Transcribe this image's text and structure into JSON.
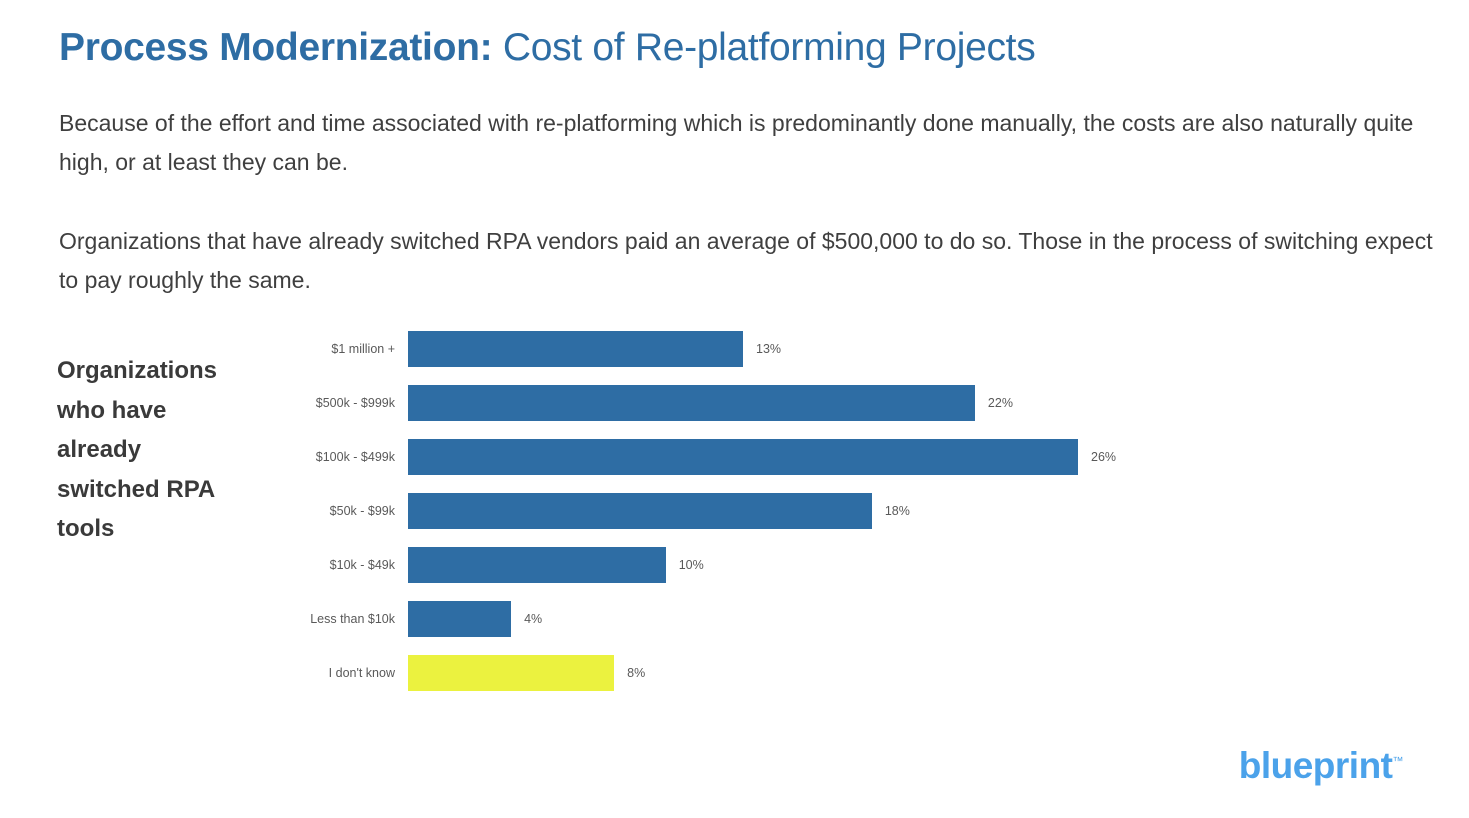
{
  "slide": {
    "title_bold": "Process Modernization:",
    "title_rest": " Cost of Re-platforming Projects",
    "paragraph1": "Because of the effort and time associated with re-platforming which is predominantly done manually, the costs are also naturally quite high, or at least they can be.",
    "paragraph2": "Organizations that have already switched RPA vendors paid an average of $500,000 to do so. Those in the process of switching expect to pay roughly the same.",
    "chart_caption": "Organizations who have already switched RPA tools",
    "logo_text": "blueprint",
    "logo_tm": "™"
  },
  "colors": {
    "title_blue": "#2E6DA4",
    "bar_blue": "#2E6DA4",
    "bar_highlight_yellow": "#EBF23F",
    "logo_blue": "#4BA2EA",
    "body_text": "#3F3F3F",
    "axis_label_gray": "#595959"
  },
  "chart_data": {
    "type": "bar",
    "orientation": "horizontal",
    "title": "",
    "xlabel": "",
    "ylabel": "",
    "categories": [
      "$1 million +",
      "$500k - $999k",
      "$100k - $499k",
      "$50k - $99k",
      "$10k - $49k",
      "Less than $10k",
      "I don't know"
    ],
    "values": [
      13,
      22,
      26,
      18,
      10,
      4,
      8
    ],
    "value_labels": [
      "13%",
      "22%",
      "26%",
      "18%",
      "10%",
      "4%",
      "8%"
    ],
    "highlight_index": 6,
    "xlim": [
      0,
      26
    ],
    "grid": false,
    "legend": false
  }
}
